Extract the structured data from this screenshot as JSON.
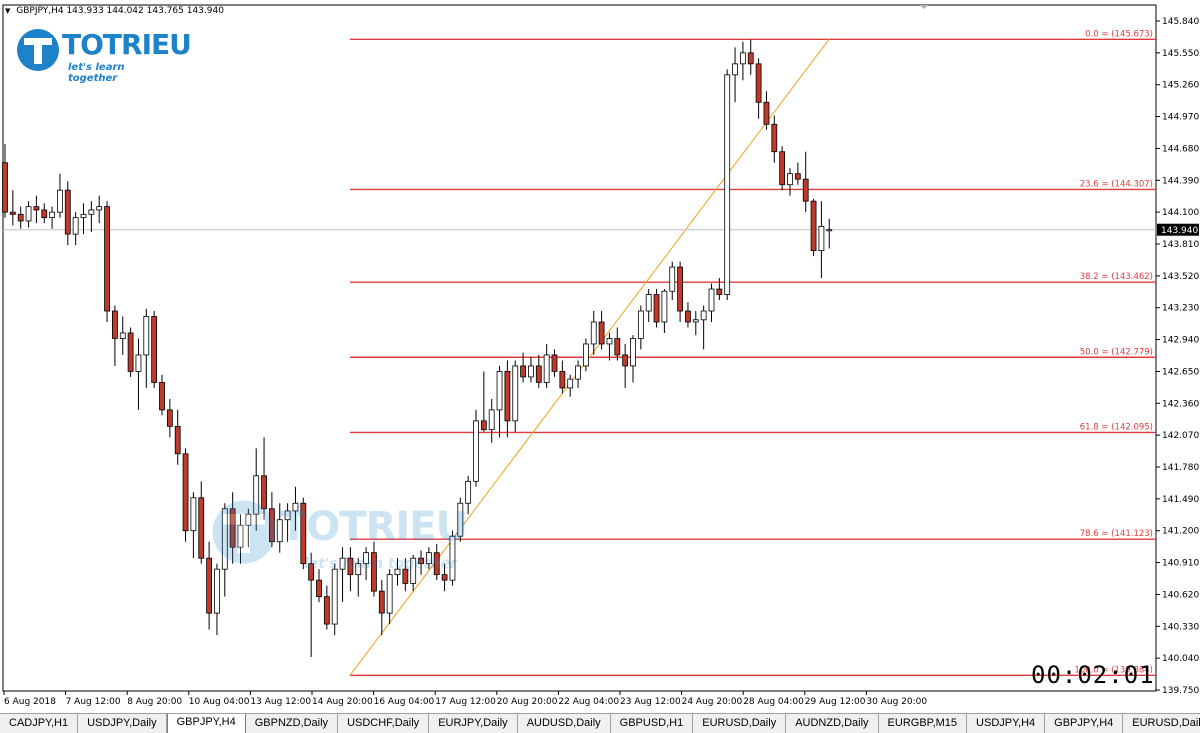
{
  "header": {
    "symbol": "GBPJPY,H4",
    "open": "143.933",
    "high": "144.042",
    "low": "143.765",
    "close": "143.940"
  },
  "logo": {
    "brand": "TOTRIEU",
    "tagline": "let's learn together"
  },
  "watermark": {
    "brand": "TOTRIEU",
    "tagline": "let's learn together"
  },
  "timer": {
    "text": "00:02:01"
  },
  "colors": {
    "bear": "#c0392b",
    "bull": "#ffffff",
    "wick": "#000000",
    "fib": "#e03c3c",
    "trend": "#f0a020",
    "brand": "#1e82c8"
  },
  "tabs": [
    {
      "label": "CADJPY,H1",
      "active": false
    },
    {
      "label": "USDJPY,Daily",
      "active": false
    },
    {
      "label": "GBPJPY,H4",
      "active": true
    },
    {
      "label": "GBPNZD,Daily",
      "active": false
    },
    {
      "label": "USDCHF,Daily",
      "active": false
    },
    {
      "label": "EURJPY,Daily",
      "active": false
    },
    {
      "label": "AUDUSD,Daily",
      "active": false
    },
    {
      "label": "GBPUSD,H1",
      "active": false
    },
    {
      "label": "EURUSD,Daily",
      "active": false
    },
    {
      "label": "AUDNZD,Daily",
      "active": false
    },
    {
      "label": "EURGBP,M15",
      "active": false
    },
    {
      "label": "USDJPY,H4",
      "active": false
    },
    {
      "label": "GBPJPY,H4",
      "active": false
    },
    {
      "label": "EURUSD,Daily",
      "active": false
    },
    {
      "label": "EU",
      "active": false
    }
  ],
  "chart_data": {
    "type": "candlestick",
    "symbol": "GBPJPY",
    "timeframe": "H4",
    "ylim": [
      139.6,
      145.9
    ],
    "y_ticks": [
      "145.840",
      "145.550",
      "145.260",
      "144.970",
      "144.680",
      "144.390",
      "144.100",
      "143.810",
      "143.520",
      "143.230",
      "142.940",
      "142.650",
      "142.360",
      "142.070",
      "141.780",
      "141.490",
      "141.200",
      "140.910",
      "140.620",
      "140.330",
      "140.040",
      "139.750"
    ],
    "x_ticks": [
      "6 Aug 2018",
      "7 Aug 12:00",
      "8 Aug 20:00",
      "10 Aug 04:00",
      "13 Aug 12:00",
      "14 Aug 20:00",
      "16 Aug 04:00",
      "17 Aug 12:00",
      "20 Aug 20:00",
      "22 Aug 04:00",
      "23 Aug 12:00",
      "24 Aug 20:00",
      "28 Aug 04:00",
      "29 Aug 12:00",
      "30 Aug 20:00"
    ],
    "current_price": "143.940",
    "fibonacci": [
      {
        "level": "0.0",
        "price": 145.673,
        "label": "0.0 = (145.673)"
      },
      {
        "level": "23.6",
        "price": 144.307,
        "label": "23.6 = (144.307)"
      },
      {
        "level": "38.2",
        "price": 143.462,
        "label": "38.2 = (143.462)"
      },
      {
        "level": "50.0",
        "price": 142.779,
        "label": "50.0 = (142.779)"
      },
      {
        "level": "61.8",
        "price": 142.095,
        "label": "61.8 = (142.095)"
      },
      {
        "level": "78.6",
        "price": 141.123,
        "label": "78.6 = (141.123)"
      },
      {
        "level": "100.0",
        "price": 139.884,
        "label": "100.0 = (139.884)"
      }
    ],
    "trendline": {
      "from_price": 139.884,
      "to_price": 145.673
    },
    "ohlc": [
      [
        144.55,
        144.72,
        144.05,
        144.1
      ],
      [
        144.1,
        144.3,
        143.98,
        144.08
      ],
      [
        144.08,
        144.15,
        143.95,
        144.02
      ],
      [
        144.02,
        144.2,
        143.96,
        144.15
      ],
      [
        144.15,
        144.25,
        144.0,
        144.12
      ],
      [
        144.12,
        144.18,
        144.0,
        144.05
      ],
      [
        144.05,
        144.15,
        143.95,
        144.1
      ],
      [
        144.1,
        144.45,
        144.05,
        144.3
      ],
      [
        144.3,
        144.38,
        143.8,
        143.9
      ],
      [
        143.9,
        144.1,
        143.8,
        144.05
      ],
      [
        144.05,
        144.18,
        143.9,
        144.08
      ],
      [
        144.08,
        144.2,
        143.92,
        144.12
      ],
      [
        144.12,
        144.25,
        144.0,
        144.15
      ],
      [
        144.15,
        144.2,
        143.1,
        143.2
      ],
      [
        143.2,
        143.25,
        142.7,
        142.95
      ],
      [
        142.95,
        143.15,
        142.8,
        143.0
      ],
      [
        143.0,
        143.05,
        142.6,
        142.65
      ],
      [
        142.65,
        142.95,
        142.3,
        142.8
      ],
      [
        142.8,
        143.22,
        142.5,
        143.15
      ],
      [
        143.15,
        143.2,
        142.5,
        142.55
      ],
      [
        142.55,
        142.62,
        142.25,
        142.3
      ],
      [
        142.3,
        142.4,
        142.05,
        142.15
      ],
      [
        142.15,
        142.3,
        141.8,
        141.9
      ],
      [
        141.9,
        141.95,
        141.1,
        141.2
      ],
      [
        141.2,
        141.55,
        140.95,
        141.5
      ],
      [
        141.5,
        141.65,
        140.9,
        140.95
      ],
      [
        140.95,
        141.1,
        140.3,
        140.45
      ],
      [
        140.45,
        140.9,
        140.25,
        140.85
      ],
      [
        140.85,
        141.45,
        140.6,
        141.4
      ],
      [
        141.4,
        141.55,
        140.9,
        141.05
      ],
      [
        141.05,
        141.35,
        140.9,
        141.25
      ],
      [
        141.25,
        141.4,
        141.05,
        141.35
      ],
      [
        141.35,
        141.95,
        141.2,
        141.7
      ],
      [
        141.7,
        142.05,
        141.3,
        141.4
      ],
      [
        141.4,
        141.55,
        141.05,
        141.1
      ],
      [
        141.1,
        141.45,
        141.0,
        141.3
      ],
      [
        141.3,
        141.45,
        141.1,
        141.38
      ],
      [
        141.38,
        141.6,
        141.2,
        141.45
      ],
      [
        141.45,
        141.5,
        140.85,
        140.9
      ],
      [
        140.9,
        141.0,
        140.05,
        140.75
      ],
      [
        140.75,
        140.85,
        140.55,
        140.6
      ],
      [
        140.6,
        140.7,
        140.3,
        140.35
      ],
      [
        140.35,
        140.9,
        140.25,
        140.85
      ],
      [
        140.85,
        141.05,
        140.55,
        140.95
      ],
      [
        140.95,
        141.05,
        140.65,
        140.8
      ],
      [
        140.8,
        140.95,
        140.6,
        140.9
      ],
      [
        140.9,
        141.05,
        140.75,
        141.0
      ],
      [
        141.0,
        141.1,
        140.6,
        140.65
      ],
      [
        140.65,
        140.75,
        140.25,
        140.45
      ],
      [
        140.45,
        140.85,
        140.35,
        140.8
      ],
      [
        140.8,
        140.95,
        140.7,
        140.85
      ],
      [
        140.85,
        140.95,
        140.65,
        140.72
      ],
      [
        140.72,
        140.98,
        140.65,
        140.95
      ],
      [
        140.95,
        141.02,
        140.8,
        140.9
      ],
      [
        140.9,
        141.05,
        140.85,
        141.0
      ],
      [
        141.0,
        141.08,
        140.75,
        140.8
      ],
      [
        140.8,
        140.9,
        140.65,
        140.75
      ],
      [
        140.75,
        141.2,
        140.7,
        141.15
      ],
      [
        141.15,
        141.5,
        141.1,
        141.45
      ],
      [
        141.45,
        141.7,
        141.35,
        141.65
      ],
      [
        141.65,
        142.3,
        141.6,
        142.2
      ],
      [
        142.2,
        142.65,
        142.1,
        142.12
      ],
      [
        142.12,
        142.4,
        142.0,
        142.3
      ],
      [
        142.3,
        142.7,
        142.05,
        142.65
      ],
      [
        142.65,
        142.75,
        142.05,
        142.2
      ],
      [
        142.2,
        142.75,
        142.1,
        142.7
      ],
      [
        142.7,
        142.82,
        142.55,
        142.6
      ],
      [
        142.6,
        142.78,
        142.55,
        142.7
      ],
      [
        142.7,
        142.8,
        142.5,
        142.55
      ],
      [
        142.55,
        142.9,
        142.5,
        142.8
      ],
      [
        142.8,
        142.85,
        142.6,
        142.65
      ],
      [
        142.65,
        142.75,
        142.45,
        142.5
      ],
      [
        142.5,
        142.62,
        142.42,
        142.58
      ],
      [
        142.58,
        142.75,
        142.5,
        142.7
      ],
      [
        142.7,
        142.95,
        142.65,
        142.9
      ],
      [
        142.9,
        143.2,
        142.8,
        143.1
      ],
      [
        143.1,
        143.2,
        142.85,
        142.9
      ],
      [
        142.9,
        143.0,
        142.75,
        142.95
      ],
      [
        142.95,
        143.05,
        142.75,
        142.8
      ],
      [
        142.8,
        142.9,
        142.5,
        142.7
      ],
      [
        142.7,
        142.98,
        142.55,
        142.95
      ],
      [
        142.95,
        143.25,
        142.85,
        143.2
      ],
      [
        143.2,
        143.4,
        143.1,
        143.35
      ],
      [
        143.35,
        143.4,
        143.05,
        143.1
      ],
      [
        143.1,
        143.4,
        143.0,
        143.38
      ],
      [
        143.38,
        143.65,
        143.3,
        143.6
      ],
      [
        143.6,
        143.65,
        143.1,
        143.2
      ],
      [
        143.2,
        143.28,
        143.05,
        143.1
      ],
      [
        143.1,
        143.2,
        142.98,
        143.12
      ],
      [
        143.12,
        143.25,
        142.85,
        143.2
      ],
      [
        143.2,
        143.45,
        143.1,
        143.4
      ],
      [
        143.4,
        143.5,
        143.3,
        143.35
      ],
      [
        143.35,
        145.4,
        143.3,
        145.35
      ],
      [
        145.35,
        145.6,
        145.1,
        145.45
      ],
      [
        145.45,
        145.65,
        145.3,
        145.55
      ],
      [
        145.55,
        145.67,
        145.35,
        145.45
      ],
      [
        145.45,
        145.5,
        144.95,
        145.1
      ],
      [
        145.1,
        145.2,
        144.85,
        144.9
      ],
      [
        144.9,
        144.98,
        144.55,
        144.65
      ],
      [
        144.65,
        144.7,
        144.3,
        144.35
      ],
      [
        144.35,
        144.5,
        144.25,
        144.45
      ],
      [
        144.45,
        144.55,
        144.35,
        144.4
      ],
      [
        144.4,
        144.65,
        144.1,
        144.2
      ],
      [
        144.2,
        144.22,
        143.7,
        143.75
      ],
      [
        143.75,
        144.2,
        143.5,
        143.97
      ],
      [
        143.93,
        144.04,
        143.77,
        143.94
      ]
    ]
  }
}
